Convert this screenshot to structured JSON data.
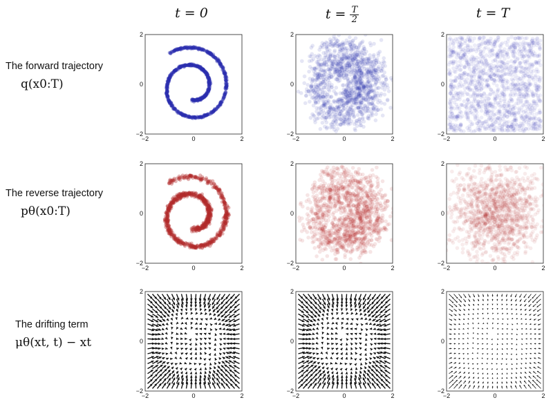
{
  "column_titles": [
    {
      "prefix": "t = 0",
      "num": "",
      "den": ""
    },
    {
      "prefix": "t = ",
      "num": "T",
      "den": "2"
    },
    {
      "prefix": "t = T",
      "num": "",
      "den": ""
    }
  ],
  "row_labels": [
    {
      "text": "The forward trajectory",
      "math": "q(x0:T)"
    },
    {
      "text": "The reverse trajectory",
      "math": "pθ(x0:T)"
    },
    {
      "text": "The drifting term",
      "math": "μθ(xt, t) − xt"
    }
  ],
  "colors": {
    "forward": "#2a2fb0",
    "reverse": "#b22a2a",
    "drift": "#111111"
  },
  "chart_data": [
    {
      "type": "scatter",
      "row": 0,
      "col": 0,
      "description_level": "spiral",
      "noise": 0.02,
      "xlim": [
        -2,
        2
      ],
      "ylim": [
        -2,
        2
      ],
      "xticks": [
        -2,
        0,
        2
      ],
      "yticks": [
        -2,
        0,
        2
      ]
    },
    {
      "type": "scatter",
      "row": 0,
      "col": 1,
      "noise": 0.35,
      "xlim": [
        -2,
        2
      ],
      "ylim": [
        -2,
        2
      ],
      "xticks": [
        -2,
        0,
        2
      ],
      "yticks": [
        -2,
        0,
        2
      ]
    },
    {
      "type": "scatter",
      "row": 0,
      "col": 2,
      "noise": 1.0,
      "xlim": [
        -2,
        2
      ],
      "ylim": [
        -2,
        2
      ],
      "xticks": [
        -2,
        0,
        2
      ],
      "yticks": [
        -2,
        0,
        2
      ]
    },
    {
      "type": "scatter",
      "row": 1,
      "col": 0,
      "noise": 0.05,
      "xlim": [
        -2,
        2
      ],
      "ylim": [
        -2,
        2
      ],
      "xticks": [
        -2,
        0,
        2
      ],
      "yticks": [
        -2,
        0,
        2
      ]
    },
    {
      "type": "scatter",
      "row": 1,
      "col": 1,
      "noise": 0.35,
      "xlim": [
        -2,
        2
      ],
      "ylim": [
        -2,
        2
      ],
      "xticks": [
        -2,
        0,
        2
      ],
      "yticks": [
        -2,
        0,
        2
      ]
    },
    {
      "type": "scatter",
      "row": 1,
      "col": 2,
      "noise": 0.9,
      "xlim": [
        -2,
        2
      ],
      "ylim": [
        -2,
        2
      ],
      "xticks": [
        -2,
        0,
        2
      ],
      "yticks": [
        -2,
        0,
        2
      ]
    },
    {
      "type": "quiver",
      "row": 2,
      "col": 0,
      "strength": 1.0,
      "xlim": [
        -2,
        2
      ],
      "ylim": [
        -2,
        2
      ],
      "xticks": [
        -2,
        0,
        2
      ],
      "yticks": [
        -2,
        0,
        2
      ]
    },
    {
      "type": "quiver",
      "row": 2,
      "col": 1,
      "strength": 1.0,
      "xlim": [
        -2,
        2
      ],
      "ylim": [
        -2,
        2
      ],
      "xticks": [
        -2,
        0,
        2
      ],
      "yticks": [
        -2,
        0,
        2
      ]
    },
    {
      "type": "quiver",
      "row": 2,
      "col": 2,
      "strength": 0.35,
      "xlim": [
        -2,
        2
      ],
      "ylim": [
        -2,
        2
      ],
      "xticks": [
        -2,
        0,
        2
      ],
      "yticks": [
        -2,
        0,
        2
      ]
    }
  ]
}
